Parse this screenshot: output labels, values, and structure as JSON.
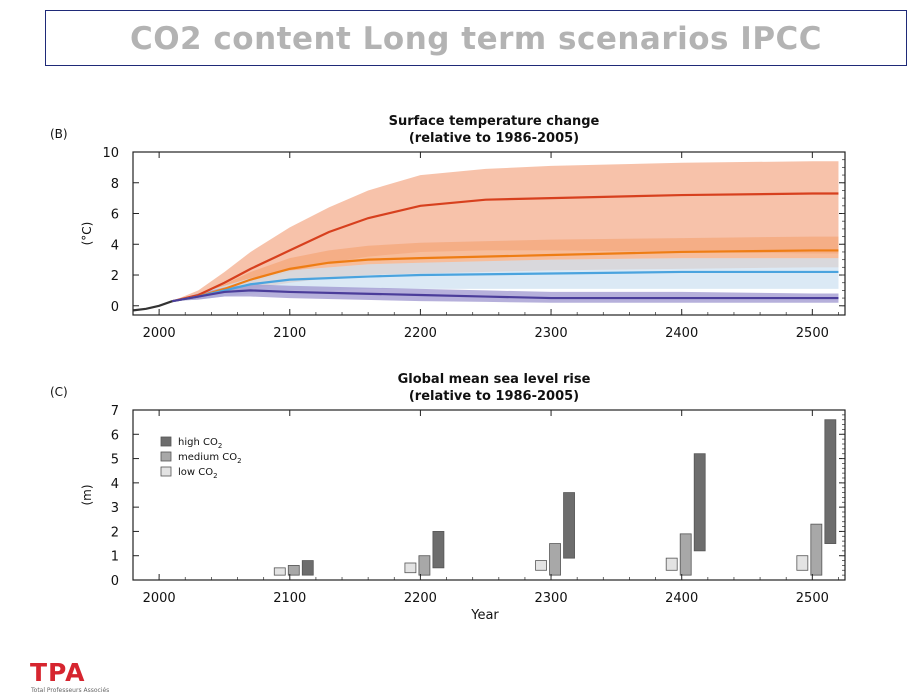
{
  "page": {
    "title": "CO2 content Long term scenarios IPCC",
    "logo_text": "TPA",
    "logo_subtext": "Total Professeurs Associés"
  },
  "colors": {
    "red": "#d7401e",
    "red_band": "#f6b79b",
    "orange": "#ee7d14",
    "orange_band": "#f4a77a",
    "blue": "#4aa3de",
    "blue_band": "#cfe2f1",
    "purple": "#4b3d9a",
    "purple_band": "#9d96cf",
    "high_bar": "#6d6d6d",
    "medium_bar": "#a8a8a8",
    "low_bar": "#e3e3e3"
  },
  "chart_data": [
    {
      "type": "area",
      "panel_label": "(B)",
      "title": "Surface temperature change",
      "subtitle": "(relative to 1986-2005)",
      "ylabel": "(°C)",
      "xlim": [
        1980,
        2525
      ],
      "ylim": [
        -0.6,
        10
      ],
      "x_ticks": [
        2000,
        2100,
        2200,
        2300,
        2400,
        2500
      ],
      "y_ticks": [
        0,
        2,
        4,
        6,
        8,
        10
      ],
      "historical": {
        "x": [
          1980,
          1990,
          2000,
          2010
        ],
        "y": [
          -0.3,
          -0.2,
          0.0,
          0.3
        ]
      },
      "series": [
        {
          "color_key": "red",
          "x": [
            2010,
            2030,
            2050,
            2070,
            2100,
            2130,
            2160,
            2200,
            2250,
            2300,
            2400,
            2500,
            2520
          ],
          "y": [
            0.3,
            0.7,
            1.5,
            2.4,
            3.6,
            4.8,
            5.7,
            6.5,
            6.9,
            7.0,
            7.2,
            7.3,
            7.3
          ],
          "band_low": [
            0.3,
            0.5,
            1.0,
            1.5,
            2.2,
            2.8,
            3.2,
            3.5,
            3.6,
            3.6,
            3.5,
            3.4,
            3.4
          ],
          "band_high": [
            0.3,
            1.0,
            2.2,
            3.5,
            5.1,
            6.4,
            7.5,
            8.5,
            8.9,
            9.1,
            9.3,
            9.4,
            9.4
          ]
        },
        {
          "color_key": "orange",
          "x": [
            2010,
            2030,
            2050,
            2070,
            2100,
            2130,
            2160,
            2200,
            2300,
            2400,
            2500,
            2520
          ],
          "y": [
            0.3,
            0.6,
            1.1,
            1.7,
            2.4,
            2.8,
            3.0,
            3.1,
            3.3,
            3.5,
            3.6,
            3.6
          ],
          "band_low": [
            0.3,
            0.5,
            0.8,
            1.1,
            1.5,
            1.8,
            2.0,
            2.1,
            2.3,
            2.4,
            2.5,
            2.5
          ],
          "band_high": [
            0.3,
            0.8,
            1.4,
            2.2,
            3.1,
            3.6,
            3.9,
            4.1,
            4.3,
            4.4,
            4.5,
            4.5
          ]
        },
        {
          "color_key": "blue",
          "x": [
            2010,
            2030,
            2050,
            2070,
            2100,
            2130,
            2160,
            2200,
            2300,
            2400,
            2500,
            2520
          ],
          "y": [
            0.3,
            0.6,
            1.0,
            1.4,
            1.7,
            1.8,
            1.9,
            2.0,
            2.1,
            2.2,
            2.2,
            2.2
          ],
          "band_low": [
            0.3,
            0.4,
            0.6,
            0.8,
            1.0,
            1.0,
            1.1,
            1.1,
            1.1,
            1.1,
            1.1,
            1.1
          ],
          "band_high": [
            0.3,
            0.8,
            1.3,
            1.8,
            2.3,
            2.5,
            2.7,
            2.8,
            3.0,
            3.1,
            3.1,
            3.1
          ]
        },
        {
          "color_key": "purple",
          "x": [
            2010,
            2030,
            2050,
            2070,
            2100,
            2150,
            2200,
            2250,
            2300,
            2400,
            2500,
            2520
          ],
          "y": [
            0.3,
            0.6,
            0.9,
            1.0,
            0.9,
            0.8,
            0.7,
            0.6,
            0.5,
            0.5,
            0.5,
            0.5
          ],
          "band_low": [
            0.3,
            0.4,
            0.6,
            0.6,
            0.5,
            0.4,
            0.3,
            0.25,
            0.2,
            0.2,
            0.2,
            0.2
          ],
          "band_high": [
            0.3,
            0.8,
            1.2,
            1.4,
            1.3,
            1.2,
            1.1,
            1.0,
            0.9,
            0.9,
            0.8,
            0.8
          ]
        }
      ]
    },
    {
      "type": "bar",
      "panel_label": "(C)",
      "title": "Global mean sea level rise",
      "subtitle": "(relative to 1986-2005)",
      "xlabel": "Year",
      "ylabel": "(m)",
      "xlim": [
        1980,
        2525
      ],
      "ylim": [
        0,
        7
      ],
      "x_ticks": [
        2000,
        2100,
        2200,
        2300,
        2400,
        2500
      ],
      "y_ticks": [
        0,
        1,
        2,
        3,
        4,
        5,
        6,
        7
      ],
      "legend_position": "upper-left",
      "series": [
        {
          "name_prefix": "high CO",
          "name_subscript": "2",
          "color_key": "high_bar",
          "bars": [
            {
              "x": 2100,
              "low": 0.2,
              "high": 0.8
            },
            {
              "x": 2200,
              "low": 0.5,
              "high": 2.0
            },
            {
              "x": 2300,
              "low": 0.9,
              "high": 3.6
            },
            {
              "x": 2400,
              "low": 1.2,
              "high": 5.2
            },
            {
              "x": 2500,
              "low": 1.5,
              "high": 6.6
            }
          ]
        },
        {
          "name_prefix": "medium CO",
          "name_subscript": "2",
          "color_key": "medium_bar",
          "bars": [
            {
              "x": 2100,
              "low": 0.2,
              "high": 0.6
            },
            {
              "x": 2200,
              "low": 0.2,
              "high": 1.0
            },
            {
              "x": 2300,
              "low": 0.2,
              "high": 1.5
            },
            {
              "x": 2400,
              "low": 0.2,
              "high": 1.9
            },
            {
              "x": 2500,
              "low": 0.2,
              "high": 2.3
            }
          ]
        },
        {
          "name_prefix": "low CO",
          "name_subscript": "2",
          "color_key": "low_bar",
          "bars": [
            {
              "x": 2100,
              "low": 0.2,
              "high": 0.5
            },
            {
              "x": 2200,
              "low": 0.3,
              "high": 0.7
            },
            {
              "x": 2300,
              "low": 0.4,
              "high": 0.8
            },
            {
              "x": 2400,
              "low": 0.4,
              "high": 0.9
            },
            {
              "x": 2500,
              "low": 0.4,
              "high": 1.0
            }
          ]
        }
      ]
    }
  ]
}
